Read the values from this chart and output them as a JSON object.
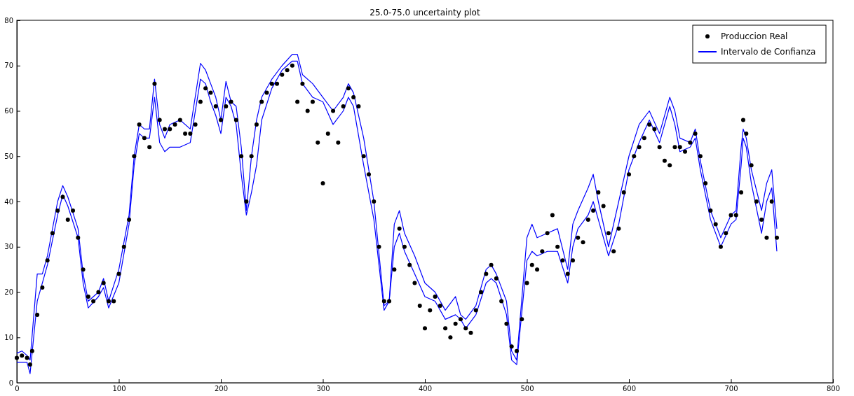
{
  "chart_data": {
    "type": "line",
    "title": "25.0-75.0 uncertainty plot",
    "xlim": [
      0,
      800
    ],
    "xticks": [
      0,
      100,
      200,
      300,
      400,
      500,
      600,
      700,
      800
    ],
    "ylim": [
      0,
      80
    ],
    "yticks": [
      0,
      10,
      20,
      30,
      40,
      50,
      60,
      70,
      80
    ],
    "grid": false,
    "legend": "top right",
    "series": [
      {
        "name": "Produccion Real",
        "type": "scatter",
        "marker": "circle",
        "color": "#000000",
        "x": [
          0,
          5,
          10,
          13,
          15,
          20,
          25,
          30,
          35,
          40,
          45,
          50,
          55,
          60,
          65,
          70,
          75,
          80,
          85,
          90,
          95,
          100,
          105,
          110,
          115,
          120,
          125,
          130,
          135,
          140,
          145,
          150,
          155,
          160,
          165,
          170,
          175,
          180,
          185,
          190,
          195,
          200,
          205,
          210,
          215,
          220,
          225,
          230,
          235,
          240,
          245,
          250,
          255,
          260,
          265,
          270,
          275,
          280,
          285,
          290,
          295,
          300,
          305,
          310,
          315,
          320,
          325,
          330,
          335,
          340,
          345,
          350,
          355,
          360,
          365,
          370,
          375,
          380,
          385,
          390,
          395,
          400,
          405,
          410,
          415,
          420,
          425,
          430,
          435,
          440,
          445,
          450,
          455,
          460,
          465,
          470,
          475,
          480,
          485,
          490,
          495,
          500,
          505,
          510,
          515,
          520,
          525,
          530,
          535,
          540,
          545,
          550,
          555,
          560,
          565,
          570,
          575,
          580,
          585,
          590,
          595,
          600,
          605,
          610,
          615,
          620,
          625,
          630,
          635,
          640,
          645,
          650,
          655,
          660,
          665,
          670,
          675,
          680,
          685,
          690,
          695,
          700,
          705,
          710,
          712,
          715,
          720,
          725,
          730,
          735,
          740,
          745
        ],
        "values": [
          5.5,
          6,
          5.5,
          4,
          7,
          15,
          21,
          27,
          33,
          38,
          41,
          36,
          38,
          32,
          25,
          19,
          18,
          20,
          22,
          18,
          18,
          24,
          30,
          36,
          50,
          57,
          54,
          52,
          66,
          58,
          56,
          56,
          57,
          58,
          55,
          55,
          57,
          62,
          65,
          64,
          61,
          58,
          61,
          62,
          58,
          50,
          40,
          50,
          57,
          62,
          64,
          66,
          66,
          68,
          69,
          70,
          62,
          66,
          60,
          62,
          53,
          44,
          55,
          60,
          53,
          61,
          65,
          63,
          61,
          50,
          46,
          40,
          30,
          18,
          18,
          25,
          34,
          30,
          26,
          22,
          17,
          12,
          16,
          19,
          17,
          12,
          10,
          13,
          14,
          12,
          11,
          16,
          20,
          24,
          26,
          23,
          18,
          13,
          8,
          7,
          14,
          22,
          26,
          25,
          29,
          33,
          37,
          30,
          27,
          24,
          27,
          32,
          31,
          36,
          38,
          42,
          39,
          33,
          29,
          34,
          42,
          46,
          50,
          52,
          54,
          57,
          56,
          52,
          49,
          48,
          52,
          52,
          51,
          53,
          55,
          50,
          44,
          38,
          35,
          30,
          33,
          37,
          37,
          42,
          58,
          55,
          48,
          40,
          36,
          32,
          40,
          32
        ]
      },
      {
        "name": "Intervalo de Confianza",
        "line_style": "solid",
        "color": "#0000ff",
        "x": [
          0,
          5,
          10,
          13,
          20,
          25,
          30,
          40,
          45,
          50,
          60,
          65,
          70,
          80,
          85,
          90,
          100,
          110,
          115,
          120,
          125,
          130,
          135,
          140,
          145,
          150,
          160,
          170,
          180,
          185,
          190,
          195,
          200,
          205,
          210,
          215,
          220,
          225,
          230,
          235,
          240,
          250,
          260,
          270,
          275,
          280,
          290,
          300,
          310,
          320,
          325,
          330,
          340,
          350,
          360,
          365,
          370,
          375,
          380,
          390,
          400,
          410,
          420,
          430,
          435,
          440,
          450,
          460,
          465,
          470,
          480,
          485,
          490,
          500,
          505,
          510,
          520,
          530,
          540,
          545,
          550,
          560,
          565,
          570,
          580,
          590,
          600,
          610,
          620,
          630,
          640,
          645,
          650,
          660,
          665,
          670,
          680,
          690,
          700,
          705,
          710,
          712,
          715,
          720,
          730,
          735,
          740,
          745
        ],
        "values": [
          6.5,
          7,
          6,
          5,
          24,
          24,
          28,
          40,
          43.5,
          41,
          34,
          24,
          18,
          20,
          23,
          18,
          25,
          37,
          50,
          57,
          56,
          56,
          67,
          57,
          54,
          57,
          58,
          56,
          70.5,
          69,
          66,
          63,
          58,
          66.5,
          62,
          61,
          52,
          38,
          50,
          58,
          63,
          67,
          70,
          72.5,
          72.5,
          68,
          66,
          63,
          60,
          63,
          66,
          64,
          54,
          40,
          17,
          18,
          35,
          38,
          33,
          28,
          22,
          20,
          16,
          19,
          15,
          14,
          17,
          25,
          26,
          24,
          18,
          7,
          5,
          32,
          35,
          32,
          33,
          34,
          25,
          35,
          38,
          43,
          46,
          40,
          30,
          40,
          50,
          57,
          60,
          55,
          63,
          60,
          54,
          53,
          56,
          49,
          38,
          32,
          37,
          38,
          52,
          56,
          54,
          47,
          38,
          44,
          47,
          34
        ]
      },
      {
        "line_style": "solid",
        "color": "#0000ff",
        "x": [
          0,
          5,
          10,
          13,
          20,
          25,
          30,
          40,
          45,
          50,
          60,
          65,
          70,
          80,
          85,
          90,
          100,
          110,
          115,
          120,
          125,
          130,
          135,
          140,
          145,
          150,
          160,
          170,
          180,
          185,
          190,
          195,
          200,
          205,
          210,
          215,
          220,
          225,
          230,
          235,
          240,
          250,
          260,
          270,
          275,
          280,
          290,
          300,
          310,
          320,
          325,
          330,
          340,
          350,
          360,
          365,
          370,
          375,
          380,
          390,
          400,
          410,
          420,
          430,
          435,
          440,
          450,
          460,
          465,
          470,
          480,
          485,
          490,
          500,
          505,
          510,
          520,
          530,
          540,
          545,
          550,
          560,
          565,
          570,
          580,
          590,
          600,
          610,
          620,
          630,
          640,
          645,
          650,
          660,
          665,
          670,
          680,
          690,
          700,
          705,
          710,
          712,
          715,
          720,
          730,
          735,
          740,
          745
        ],
        "values": [
          4.5,
          4.5,
          4.5,
          2,
          18,
          22,
          26,
          37,
          41.5,
          39,
          32,
          22,
          16.5,
          19,
          21,
          16.5,
          22,
          35,
          48,
          55,
          54,
          54,
          63,
          53,
          51,
          52,
          52,
          53,
          67,
          66,
          62,
          59,
          55,
          63,
          61,
          57,
          46,
          37,
          42,
          48,
          58,
          65,
          69,
          71,
          71,
          66,
          63,
          62,
          57,
          60,
          63,
          61,
          48,
          36,
          16,
          18,
          30,
          33,
          29,
          24,
          19,
          18,
          14,
          15,
          14,
          12,
          15,
          22,
          23,
          22,
          15,
          5,
          4,
          27,
          29,
          28,
          29,
          29,
          22,
          30,
          34,
          37,
          40,
          36,
          28,
          35,
          47,
          53,
          58,
          53,
          61,
          57,
          51,
          52,
          54,
          47,
          36,
          30,
          35,
          36,
          48,
          54,
          52,
          44,
          33,
          40,
          43,
          29
        ]
      }
    ]
  }
}
